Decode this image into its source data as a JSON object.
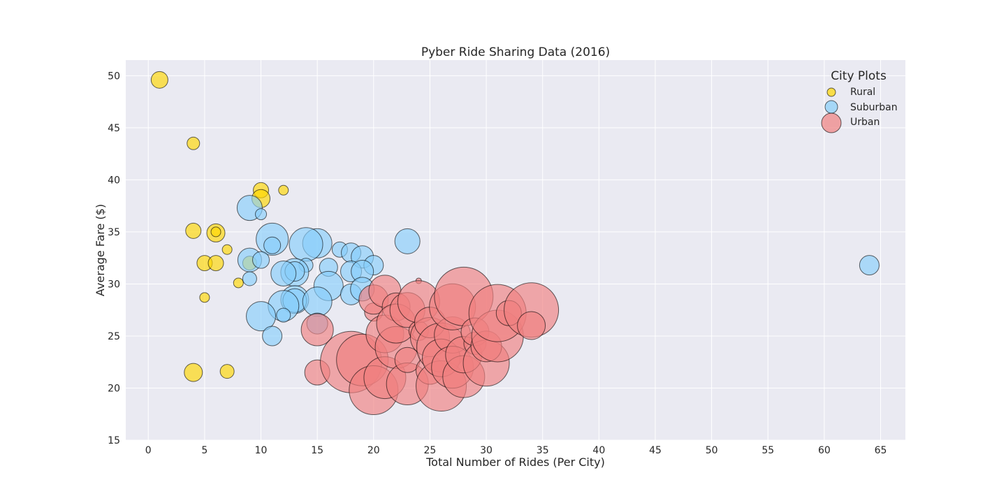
{
  "chart_data": {
    "type": "scatter",
    "title": "Pyber Ride Sharing Data (2016)",
    "xlabel": "Total Number of Rides (Per City)",
    "ylabel": "Average Fare ($)",
    "xlim": [
      -2,
      67.2
    ],
    "ylim": [
      15,
      51.5
    ],
    "xticks": [
      "0",
      "5",
      "10",
      "15",
      "20",
      "25",
      "30",
      "35",
      "40",
      "45",
      "50",
      "55",
      "60",
      "65"
    ],
    "yticks": [
      "15",
      "20",
      "25",
      "30",
      "35",
      "40",
      "45",
      "50"
    ],
    "grid": true,
    "background": "#eaeaf2",
    "legend": {
      "title": "City Plots",
      "placement": "top-right",
      "entries": [
        "Rural",
        "Suburban",
        "Urban"
      ]
    },
    "series": [
      {
        "name": "Rural",
        "color": "#ffd700",
        "points": [
          {
            "x": 1,
            "y": 49.6,
            "r": 12
          },
          {
            "x": 4,
            "y": 43.5,
            "r": 9
          },
          {
            "x": 10,
            "y": 39.0,
            "r": 11
          },
          {
            "x": 12,
            "y": 39.0,
            "r": 7
          },
          {
            "x": 10,
            "y": 38.2,
            "r": 13
          },
          {
            "x": 4,
            "y": 35.1,
            "r": 11
          },
          {
            "x": 6,
            "y": 34.9,
            "r": 13
          },
          {
            "x": 6,
            "y": 35.0,
            "r": 7
          },
          {
            "x": 7,
            "y": 33.3,
            "r": 7
          },
          {
            "x": 5,
            "y": 32.0,
            "r": 11
          },
          {
            "x": 6,
            "y": 32.0,
            "r": 11
          },
          {
            "x": 9,
            "y": 32.0,
            "r": 10
          },
          {
            "x": 8,
            "y": 30.1,
            "r": 7
          },
          {
            "x": 5,
            "y": 28.7,
            "r": 7
          },
          {
            "x": 4,
            "y": 21.5,
            "r": 13
          },
          {
            "x": 7,
            "y": 21.6,
            "r": 10
          }
        ]
      },
      {
        "name": "Suburban",
        "color": "#87cefa",
        "points": [
          {
            "x": 9,
            "y": 37.3,
            "r": 18
          },
          {
            "x": 10,
            "y": 36.7,
            "r": 8
          },
          {
            "x": 11,
            "y": 34.3,
            "r": 23
          },
          {
            "x": 11,
            "y": 33.7,
            "r": 12
          },
          {
            "x": 15,
            "y": 33.9,
            "r": 21
          },
          {
            "x": 14,
            "y": 33.8,
            "r": 24
          },
          {
            "x": 23,
            "y": 34.1,
            "r": 18
          },
          {
            "x": 17,
            "y": 33.3,
            "r": 11
          },
          {
            "x": 18,
            "y": 33.0,
            "r": 14
          },
          {
            "x": 19,
            "y": 32.6,
            "r": 16
          },
          {
            "x": 9,
            "y": 32.3,
            "r": 17
          },
          {
            "x": 10,
            "y": 32.3,
            "r": 12
          },
          {
            "x": 20,
            "y": 31.8,
            "r": 14
          },
          {
            "x": 16,
            "y": 31.6,
            "r": 13
          },
          {
            "x": 14,
            "y": 31.8,
            "r": 10
          },
          {
            "x": 13,
            "y": 31.1,
            "r": 20
          },
          {
            "x": 13,
            "y": 31.2,
            "r": 14
          },
          {
            "x": 12,
            "y": 31.0,
            "r": 18
          },
          {
            "x": 18,
            "y": 31.2,
            "r": 15
          },
          {
            "x": 19,
            "y": 31.2,
            "r": 16
          },
          {
            "x": 9,
            "y": 30.5,
            "r": 10
          },
          {
            "x": 16,
            "y": 29.8,
            "r": 21
          },
          {
            "x": 18,
            "y": 29.0,
            "r": 15
          },
          {
            "x": 19,
            "y": 29.5,
            "r": 17
          },
          {
            "x": 13,
            "y": 28.5,
            "r": 20
          },
          {
            "x": 13,
            "y": 28.4,
            "r": 17
          },
          {
            "x": 15,
            "y": 28.3,
            "r": 21
          },
          {
            "x": 12,
            "y": 27.9,
            "r": 22
          },
          {
            "x": 12,
            "y": 27.0,
            "r": 10
          },
          {
            "x": 10,
            "y": 26.9,
            "r": 21
          },
          {
            "x": 15,
            "y": 26.2,
            "r": 15
          },
          {
            "x": 11,
            "y": 25.0,
            "r": 14
          },
          {
            "x": 64,
            "y": 31.8,
            "r": 14
          }
        ]
      },
      {
        "name": "Urban",
        "color": "#f08080",
        "points": [
          {
            "x": 15,
            "y": 25.6,
            "r": 23
          },
          {
            "x": 15,
            "y": 21.5,
            "r": 18
          },
          {
            "x": 18,
            "y": 22.5,
            "r": 44
          },
          {
            "x": 19,
            "y": 22.7,
            "r": 37
          },
          {
            "x": 20,
            "y": 19.8,
            "r": 35
          },
          {
            "x": 20,
            "y": 27.3,
            "r": 13
          },
          {
            "x": 20,
            "y": 28.5,
            "r": 21
          },
          {
            "x": 21,
            "y": 29.3,
            "r": 23
          },
          {
            "x": 21,
            "y": 21.0,
            "r": 30
          },
          {
            "x": 21,
            "y": 25.2,
            "r": 27
          },
          {
            "x": 22,
            "y": 23.9,
            "r": 30
          },
          {
            "x": 22,
            "y": 27.8,
            "r": 20
          },
          {
            "x": 22,
            "y": 26.2,
            "r": 28
          },
          {
            "x": 23,
            "y": 20.4,
            "r": 30
          },
          {
            "x": 23,
            "y": 22.7,
            "r": 18
          },
          {
            "x": 23,
            "y": 27.5,
            "r": 25
          },
          {
            "x": 24,
            "y": 25.5,
            "r": 14
          },
          {
            "x": 24,
            "y": 30.3,
            "r": 4
          },
          {
            "x": 24,
            "y": 28.3,
            "r": 30
          },
          {
            "x": 25,
            "y": 21.7,
            "r": 20
          },
          {
            "x": 25,
            "y": 24.9,
            "r": 28
          },
          {
            "x": 25,
            "y": 26.3,
            "r": 22
          },
          {
            "x": 26,
            "y": 23.9,
            "r": 35
          },
          {
            "x": 26,
            "y": 20.2,
            "r": 36
          },
          {
            "x": 26,
            "y": 22.9,
            "r": 27
          },
          {
            "x": 27,
            "y": 25.1,
            "r": 26
          },
          {
            "x": 27,
            "y": 22.0,
            "r": 30
          },
          {
            "x": 27,
            "y": 27.8,
            "r": 33
          },
          {
            "x": 28,
            "y": 28.8,
            "r": 42
          },
          {
            "x": 28,
            "y": 21.1,
            "r": 30
          },
          {
            "x": 28,
            "y": 23.2,
            "r": 26
          },
          {
            "x": 29,
            "y": 24.3,
            "r": 16
          },
          {
            "x": 29,
            "y": 25.4,
            "r": 20
          },
          {
            "x": 30,
            "y": 22.4,
            "r": 33
          },
          {
            "x": 30,
            "y": 24.0,
            "r": 22
          },
          {
            "x": 31,
            "y": 25.0,
            "r": 37
          },
          {
            "x": 31,
            "y": 27.2,
            "r": 41
          },
          {
            "x": 32,
            "y": 27.2,
            "r": 18
          },
          {
            "x": 34,
            "y": 27.5,
            "r": 39
          },
          {
            "x": 34,
            "y": 26.0,
            "r": 20
          }
        ]
      }
    ]
  }
}
